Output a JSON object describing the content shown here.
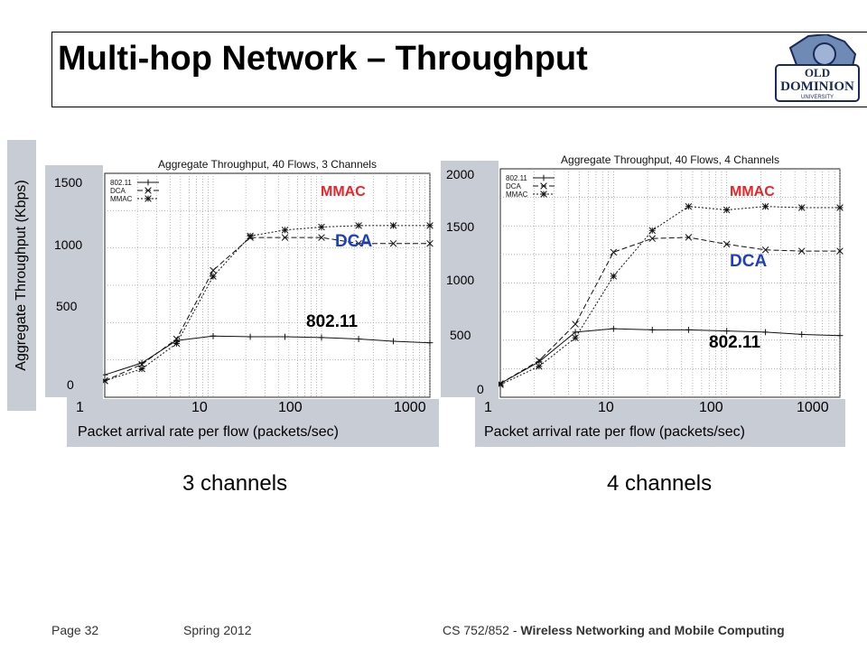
{
  "slide": {
    "title": "Multi-hop Network – Throughput",
    "y_axis_label": "Aggregate Throughput (Kbps)",
    "x_axis_label": "Packet arrival rate per flow (packets/sec)",
    "x_ticks": [
      "1",
      "10",
      "100",
      "1000"
    ],
    "left_y_ticks": [
      "1500",
      "1000",
      "500",
      "0"
    ],
    "right_y_ticks": [
      "2000",
      "1500",
      "1000",
      "500",
      "0"
    ],
    "left_caption": "3 channels",
    "right_caption": "4 channels",
    "annot_mmac": "MMAC",
    "annot_dca": "DCA",
    "annot_80211": "802.11",
    "footer_page": "Page 32",
    "footer_term": "Spring 2012",
    "footer_course_plain": "CS 752/852 - ",
    "footer_course_bold": "Wireless Networking and Mobile Computing"
  },
  "logo": {
    "text_line1": "OLD",
    "text_line2": "DOMINION",
    "text_line3": "UNIVERSITY"
  },
  "colors": {
    "mmac": "#e8262a",
    "dca": "#1f3fbf",
    "grey_panel": "#c8ccd4",
    "title": "#000000"
  },
  "chart_data": [
    {
      "type": "line",
      "title": "Aggregate Throughput, 40 Flows, 3 Channels",
      "xscale": "log",
      "xlim": [
        1,
        1000
      ],
      "ylim": [
        0,
        1500
      ],
      "legend": "top-left",
      "x": [
        1,
        2.2,
        4.6,
        10,
        22,
        46,
        100,
        220,
        460,
        1000
      ],
      "series": [
        {
          "name": "802.11",
          "marker": "+",
          "values": [
            150,
            230,
            380,
            410,
            405,
            405,
            400,
            390,
            375,
            365
          ]
        },
        {
          "name": "DCA",
          "marker": "x",
          "values": [
            110,
            220,
            390,
            850,
            1070,
            1070,
            1070,
            1030,
            1030,
            1030
          ]
        },
        {
          "name": "MMAC",
          "marker": "*",
          "values": [
            110,
            190,
            360,
            810,
            1080,
            1120,
            1140,
            1150,
            1150,
            1150
          ]
        }
      ]
    },
    {
      "type": "line",
      "title": "Aggregate Throughput, 40 Flows, 4 Channels",
      "xscale": "log",
      "xlim": [
        1,
        1000
      ],
      "ylim": [
        0,
        2000
      ],
      "legend": "top-left",
      "x": [
        1,
        2.2,
        4.6,
        10,
        22,
        46,
        100,
        220,
        460,
        1000
      ],
      "series": [
        {
          "name": "802.11",
          "marker": "+",
          "values": [
            120,
            310,
            570,
            600,
            590,
            590,
            580,
            570,
            550,
            540
          ]
        },
        {
          "name": "DCA",
          "marker": "x",
          "values": [
            120,
            320,
            640,
            1270,
            1390,
            1400,
            1340,
            1290,
            1280,
            1280
          ]
        },
        {
          "name": "MMAC",
          "marker": "*",
          "values": [
            110,
            270,
            520,
            1060,
            1460,
            1670,
            1640,
            1670,
            1660,
            1660
          ]
        }
      ]
    }
  ]
}
